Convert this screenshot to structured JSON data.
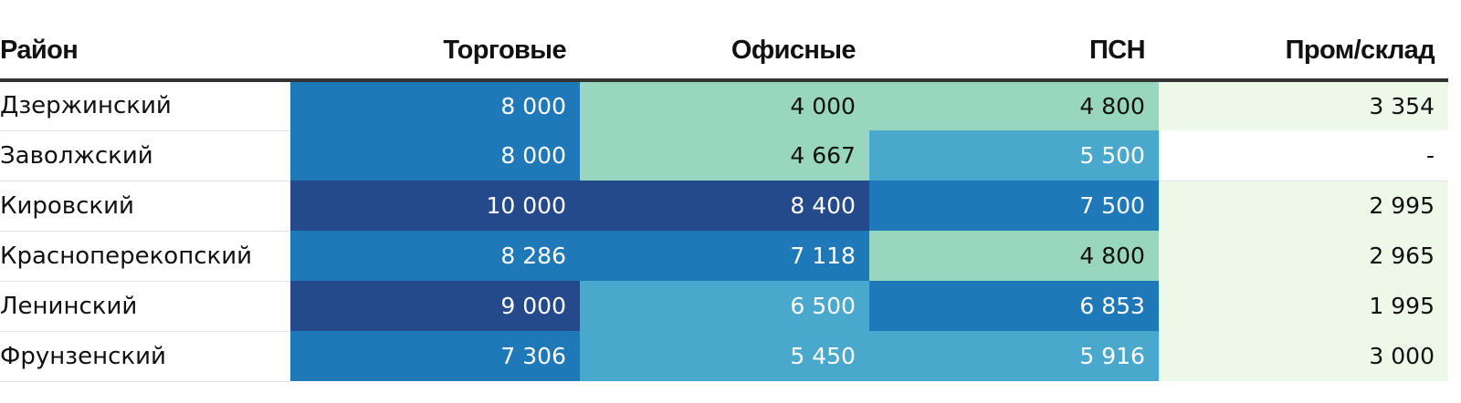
{
  "colors": {
    "scale_lightest": "#edf8e8",
    "scale_light": "#98d6c0",
    "scale_mid": "#4aa8cc",
    "scale_dark": "#1f79b8",
    "scale_darkest": "#254a8c",
    "no_data": "#ffffff"
  },
  "chart_data": {
    "type": "table",
    "columns": [
      "Район",
      "Торговые",
      "Офисные",
      "ПСН",
      "Пром/склад"
    ],
    "rows": [
      {
        "label": "Дзержинский",
        "values": [
          "8 000",
          "4 000",
          "4 800",
          "3 354"
        ],
        "color_class": [
          4,
          2,
          2,
          1
        ]
      },
      {
        "label": "Заволжский",
        "values": [
          "8 000",
          "4 667",
          "5 500",
          "-"
        ],
        "color_class": [
          4,
          2,
          3,
          0
        ]
      },
      {
        "label": "Кировский",
        "values": [
          "10 000",
          "8 400",
          "7 500",
          "2 995"
        ],
        "color_class": [
          5,
          5,
          4,
          1
        ]
      },
      {
        "label": "Красноперекопский",
        "values": [
          "8 286",
          "7 118",
          "4 800",
          "2 965"
        ],
        "color_class": [
          4,
          4,
          2,
          1
        ]
      },
      {
        "label": "Ленинский",
        "values": [
          "9 000",
          "6 500",
          "6 853",
          "1 995"
        ],
        "color_class": [
          5,
          3,
          4,
          1
        ]
      },
      {
        "label": "Фрунзенский",
        "values": [
          "7 306",
          "5 450",
          "5 916",
          "3 000"
        ],
        "color_class": [
          4,
          3,
          3,
          1
        ]
      }
    ]
  }
}
